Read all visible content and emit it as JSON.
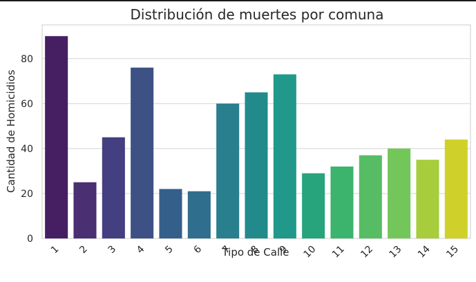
{
  "chart_data": {
    "type": "bar",
    "title": "Distribución de muertes por comuna",
    "xlabel": "Tipo de Calle",
    "ylabel": "Cantidad de Homicidios",
    "categories": [
      "1",
      "2",
      "3",
      "4",
      "5",
      "6",
      "7",
      "8",
      "9",
      "10",
      "11",
      "12",
      "13",
      "14",
      "15"
    ],
    "values": [
      90,
      25,
      45,
      76,
      22,
      21,
      60,
      65,
      73,
      29,
      32,
      37,
      40,
      35,
      44
    ],
    "ylim": [
      0,
      95
    ],
    "yticks": [
      0,
      20,
      40,
      60,
      80
    ],
    "grid": "horizontal",
    "palette": "viridis",
    "colors": [
      "#461f63",
      "#4a2f73",
      "#443f81",
      "#3e5185",
      "#355f8b",
      "#2f6e8d",
      "#2a7f8e",
      "#238a8c",
      "#20998a",
      "#28a47c",
      "#3cb46d",
      "#57bd64",
      "#73c75a",
      "#a7cd3c",
      "#cfd12a"
    ]
  }
}
